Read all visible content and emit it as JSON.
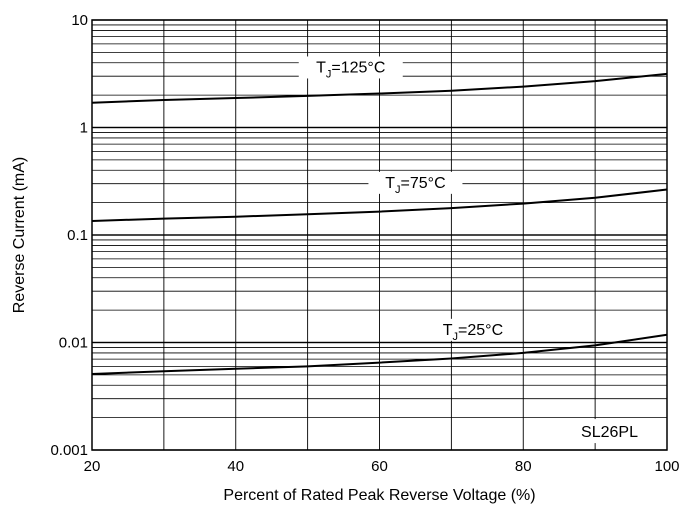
{
  "chart_data": {
    "type": "line",
    "xlabel": "Percent of Rated Peak Reverse Voltage (%)",
    "ylabel": "Reverse Current (mA)",
    "x_scale": "linear",
    "y_scale": "log",
    "xlim": [
      20,
      100
    ],
    "ylim": [
      0.001,
      10
    ],
    "x_ticks": [
      {
        "value": 20,
        "label": "20"
      },
      {
        "value": 40,
        "label": "40"
      },
      {
        "value": 60,
        "label": "60"
      },
      {
        "value": 80,
        "label": "80"
      },
      {
        "value": 100,
        "label": "100"
      }
    ],
    "y_ticks": [
      {
        "value": 0.001,
        "label": "0.001"
      },
      {
        "value": 0.01,
        "label": "0.01"
      },
      {
        "value": 0.1,
        "label": "0.1"
      },
      {
        "value": 1,
        "label": "1"
      },
      {
        "value": 10,
        "label": "10"
      }
    ],
    "grid": true,
    "series": [
      {
        "name": "T_J=125°C",
        "label_main": "T",
        "label_sub": "J",
        "label_rest": "=125°C",
        "x": [
          20,
          30,
          40,
          50,
          60,
          70,
          80,
          90,
          100
        ],
        "y": [
          1.7,
          1.8,
          1.88,
          1.97,
          2.07,
          2.2,
          2.4,
          2.7,
          3.15
        ]
      },
      {
        "name": "T_J=75°C",
        "label_main": "T",
        "label_sub": "J",
        "label_rest": "=75°C",
        "x": [
          20,
          30,
          40,
          50,
          60,
          70,
          80,
          90,
          100
        ],
        "y": [
          0.135,
          0.142,
          0.148,
          0.156,
          0.165,
          0.178,
          0.196,
          0.222,
          0.265
        ]
      },
      {
        "name": "T_J=25°C",
        "label_main": "T",
        "label_sub": "J",
        "label_rest": "=25°C",
        "x": [
          20,
          30,
          40,
          50,
          60,
          70,
          80,
          90,
          100
        ],
        "y": [
          0.0051,
          0.0054,
          0.0057,
          0.006,
          0.0065,
          0.0071,
          0.008,
          0.0094,
          0.0118
        ]
      }
    ],
    "annotation": "SL26PL"
  }
}
